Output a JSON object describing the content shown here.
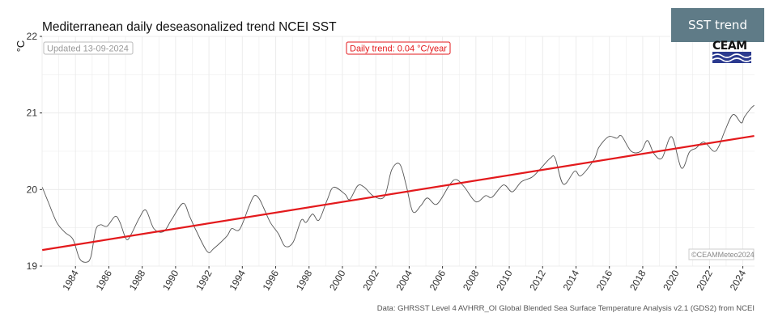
{
  "badge": {
    "label": "SST trend"
  },
  "logo": {
    "text": "CEAM",
    "color": "#2b3a8f"
  },
  "chart_data": {
    "type": "line",
    "title": "Mediterranean daily deseasonalized trend NCEI SST",
    "ylabel": "°C",
    "xlabel": "",
    "xlim": [
      1982.0,
      2024.7
    ],
    "ylim": [
      19.0,
      22.0
    ],
    "x_ticks": [
      1984,
      1986,
      1988,
      1990,
      1992,
      1994,
      1996,
      1998,
      2000,
      2002,
      2004,
      2006,
      2008,
      2010,
      2012,
      2014,
      2016,
      2018,
      2020,
      2022,
      2024
    ],
    "y_ticks": [
      19,
      20,
      21,
      22
    ],
    "grid": true,
    "annotations": {
      "updated": "Updated 13-09-2024",
      "trend": "Daily trend: 0.04 °C/year",
      "copyright": "©CEAMMeteo2024",
      "source": "Data: GHRSST Level 4 AVHRR_OI Global Blended Sea Surface Temperature Analysis v2.1 (GDS2) from NCEI"
    },
    "colors": {
      "series": "#555555",
      "trend": "#e3191c",
      "annotation_trend": "#e3191c",
      "grid": "#ececec"
    },
    "series": [
      {
        "x": [
          1982.01,
          1982.4,
          1982.88,
          1983.37,
          1983.85,
          1984.24,
          1984.63,
          1984.92,
          1985.21,
          1985.5,
          1985.89,
          1986.38,
          1986.67,
          1987.05,
          1987.35,
          1987.83,
          1988.22,
          1988.7,
          1989.28,
          1989.77,
          1990.45,
          1990.84,
          1991.22,
          1991.9,
          1992.29,
          1993.07,
          1993.36,
          1993.84,
          1994.42,
          1994.72,
          1995.01,
          1995.3,
          1995.68,
          1996.17,
          1996.56,
          1997.04,
          1997.53,
          1997.82,
          1998.21,
          1998.59,
          1999.08,
          1999.47,
          2000.15,
          2000.44,
          2000.92,
          2001.31,
          2001.89,
          2002.52,
          2002.96,
          2003.44,
          2003.83,
          2004.22,
          2004.7,
          2005.09,
          2005.67,
          2006.45,
          2006.84,
          2007.32,
          2008.0,
          2008.58,
          2008.97,
          2009.65,
          2010.18,
          2010.72,
          2011.35,
          2011.78,
          2012.46,
          2012.75,
          2013.24,
          2013.92,
          2014.3,
          2015.08,
          2015.37,
          2015.95,
          2016.44,
          2016.73,
          2017.31,
          2017.89,
          2018.28,
          2018.67,
          2019.15,
          2019.73,
          2020.32,
          2020.8,
          2021.19,
          2021.67,
          2022.25,
          2022.55,
          2022.93,
          2023.42,
          2023.9,
          2024.1,
          2024.48,
          2024.68
        ],
        "y": [
          20.03,
          19.82,
          19.57,
          19.44,
          19.35,
          19.1,
          19.05,
          19.12,
          19.47,
          19.54,
          19.52,
          19.65,
          19.57,
          19.35,
          19.42,
          19.63,
          19.73,
          19.49,
          19.45,
          19.61,
          19.82,
          19.65,
          19.47,
          19.19,
          19.23,
          19.39,
          19.49,
          19.48,
          19.79,
          19.92,
          19.88,
          19.75,
          19.57,
          19.42,
          19.26,
          19.31,
          19.6,
          19.57,
          19.68,
          19.6,
          19.86,
          20.03,
          19.94,
          19.87,
          20.05,
          20.03,
          19.91,
          19.91,
          20.26,
          20.33,
          20.05,
          19.71,
          19.79,
          19.89,
          19.81,
          20.07,
          20.13,
          20.03,
          19.84,
          19.92,
          19.9,
          20.06,
          19.97,
          20.1,
          20.16,
          20.25,
          20.41,
          20.41,
          20.07,
          20.24,
          20.18,
          20.39,
          20.55,
          20.69,
          20.67,
          20.7,
          20.5,
          20.5,
          20.64,
          20.47,
          20.41,
          20.69,
          20.28,
          20.49,
          20.54,
          20.62,
          20.5,
          20.56,
          20.77,
          20.98,
          20.87,
          20.95,
          21.06,
          21.1
        ]
      }
    ],
    "trend_line": {
      "x": [
        1982.01,
        2024.68
      ],
      "y": [
        19.21,
        20.7
      ],
      "slope_per_year": 0.04
    }
  }
}
